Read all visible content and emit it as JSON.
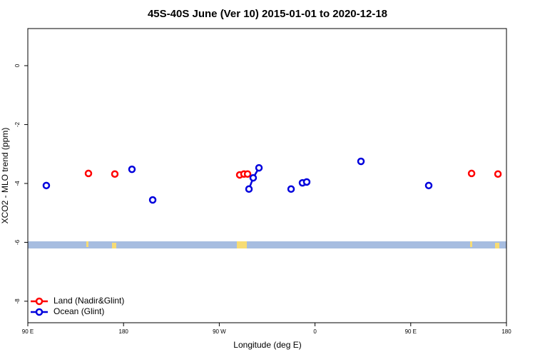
{
  "chart_data": {
    "type": "line",
    "title": "45S-40S June (Ver 10)   2015-01-01 to 2020-12-18",
    "xlabel": "Longitude (deg E)",
    "ylabel": "XCO2 - MLO trend (ppm)",
    "xlim": [
      90,
      540
    ],
    "xticks": [
      {
        "value": 90,
        "label": "90 E"
      },
      180,
      {
        "value": 270,
        "label": "90 W"
      },
      {
        "value": 360,
        "label": "0"
      },
      {
        "value": 450,
        "label": "90 E"
      },
      {
        "value": 540,
        "label": "180"
      }
    ],
    "ylim": [
      -8.73,
      1.26
    ],
    "yticks": [
      0,
      -2,
      -4,
      -6,
      -8
    ],
    "legend": "bottomleft",
    "series": [
      {
        "name": "Land (Nadir&Glint)",
        "color": "#ff0000",
        "x": [
          147.0,
          null,
          171.8,
          null,
          289.2,
          293.2,
          296.6,
          null,
          507.2,
          null,
          532.0
        ],
        "values": [
          -3.66,
          null,
          -3.68,
          null,
          -3.71,
          -3.68,
          -3.68,
          null,
          -3.66,
          null,
          -3.68
        ]
      },
      {
        "name": "Ocean (Glint)",
        "color": "#0000dd",
        "x": [
          107.4,
          null,
          187.9,
          null,
          207.4,
          null,
          297.9,
          301.9,
          307.3,
          null,
          337.5,
          null,
          348.2,
          352.2,
          null,
          403.2,
          null,
          466.9
        ],
        "values": [
          -4.07,
          null,
          -3.52,
          null,
          -4.56,
          null,
          -4.19,
          -3.81,
          -3.47,
          null,
          -4.19,
          null,
          -3.98,
          -3.95,
          null,
          -3.25,
          null,
          -4.07
        ]
      }
    ]
  }
}
